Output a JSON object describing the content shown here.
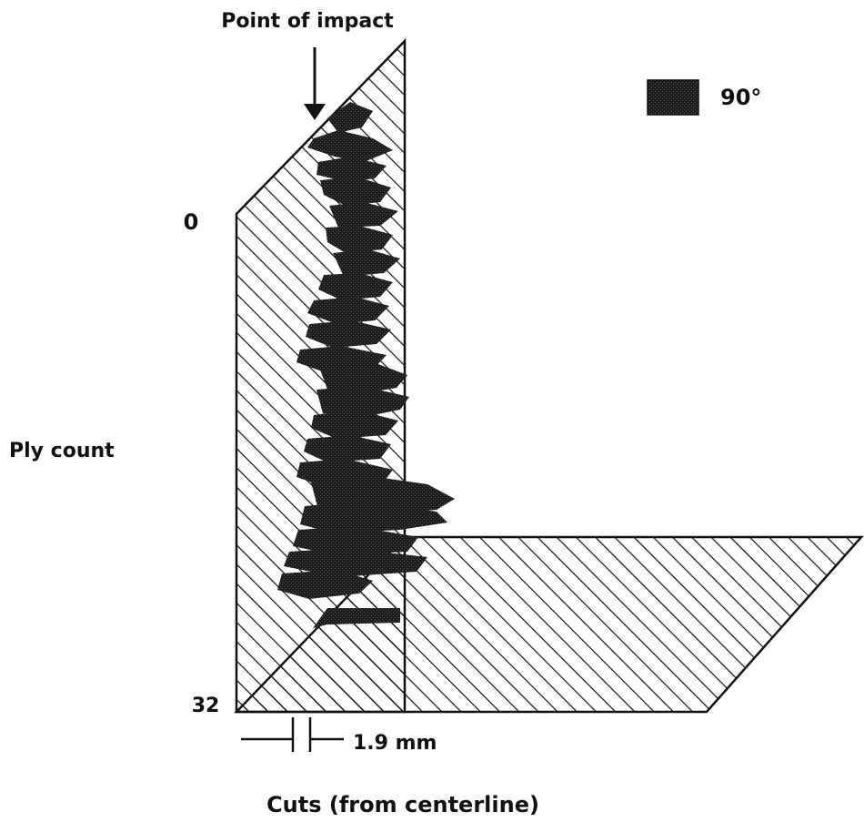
{
  "figure": {
    "annotation": "Point of impact",
    "legend_label": "90°",
    "y_axis_label": "Ply count",
    "y_tick_top": "0",
    "y_tick_bottom": "32",
    "spacing_label": "1.9 mm",
    "x_axis_label": "Cuts (from centerline)"
  },
  "colors": {
    "line": "#111111",
    "damage_fill": "#1c1c1c",
    "background": "#ffffff"
  }
}
